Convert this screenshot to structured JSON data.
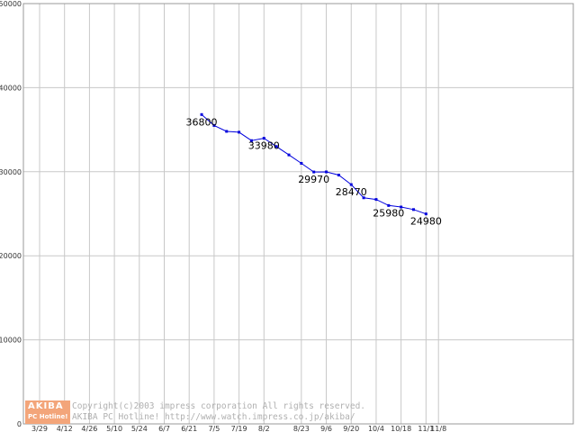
{
  "chart_data": {
    "type": "line",
    "ylim": [
      0,
      50000
    ],
    "yticks": [
      "0",
      "10000",
      "20000",
      "30000",
      "40000",
      "50000"
    ],
    "xticks": [
      "3/29",
      "4/12",
      "4/26",
      "5/10",
      "5/24",
      "6/7",
      "6/21",
      "7/5",
      "7/19",
      "8/2",
      "8/23",
      "9/6",
      "9/20",
      "10/4",
      "10/18",
      "11/1",
      "11/8"
    ],
    "grid": true,
    "color": "#0000dd",
    "points": [
      {
        "x": "6/28",
        "y": 36800,
        "label": "36800"
      },
      {
        "x": "7/5",
        "y": 35500
      },
      {
        "x": "7/12",
        "y": 34800
      },
      {
        "x": "7/19",
        "y": 34700
      },
      {
        "x": "7/26",
        "y": 33700
      },
      {
        "x": "8/2",
        "y": 33980,
        "label": "33980"
      },
      {
        "x": "8/9",
        "y": 33000
      },
      {
        "x": "8/16",
        "y": 32000
      },
      {
        "x": "8/23",
        "y": 31000
      },
      {
        "x": "8/30",
        "y": 29970,
        "label": "29970"
      },
      {
        "x": "9/6",
        "y": 29980
      },
      {
        "x": "9/13",
        "y": 29600
      },
      {
        "x": "9/20",
        "y": 28470,
        "label": "28470"
      },
      {
        "x": "9/27",
        "y": 26900
      },
      {
        "x": "10/4",
        "y": 26700
      },
      {
        "x": "10/11",
        "y": 25980,
        "label": "25980"
      },
      {
        "x": "10/18",
        "y": 25800
      },
      {
        "x": "10/25",
        "y": 25500
      },
      {
        "x": "11/1",
        "y": 24980,
        "label": "24980"
      }
    ]
  },
  "footer": {
    "logo_top": "AKIBA",
    "logo_bottom": "PC Hotline!",
    "copyright_line1": "Copyright(c)2003 impress corporation All rights reserved.",
    "copyright_line2": "AKIBA PC Hotline!  http://www.watch.impress.co.jp/akiba/"
  }
}
